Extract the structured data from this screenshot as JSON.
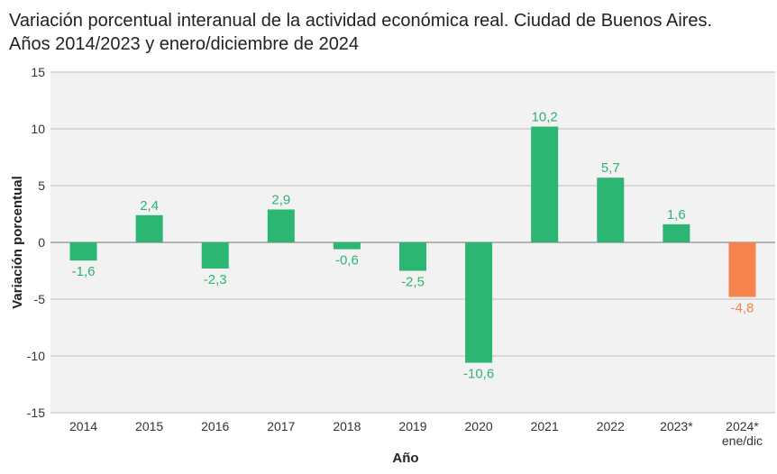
{
  "chart_data": {
    "type": "bar",
    "title_lines": [
      "Variación porcentual interanual de la actividad económica real. Ciudad de Buenos Aires.",
      "Años 2014/2023 y enero/diciembre de 2024"
    ],
    "xlabel": "Año",
    "ylabel": "Variación porcentual",
    "ylim": [
      -15,
      15
    ],
    "yticks": [
      15,
      10,
      5,
      0,
      -5,
      -10,
      -15
    ],
    "grid": true,
    "categories": [
      {
        "label": "2014",
        "sublabel": ""
      },
      {
        "label": "2015",
        "sublabel": ""
      },
      {
        "label": "2016",
        "sublabel": ""
      },
      {
        "label": "2017",
        "sublabel": ""
      },
      {
        "label": "2018",
        "sublabel": ""
      },
      {
        "label": "2019",
        "sublabel": ""
      },
      {
        "label": "2020",
        "sublabel": ""
      },
      {
        "label": "2021",
        "sublabel": ""
      },
      {
        "label": "2022",
        "sublabel": ""
      },
      {
        "label": "2023*",
        "sublabel": ""
      },
      {
        "label": "2024*",
        "sublabel": "ene/dic"
      }
    ],
    "values": [
      -1.6,
      2.4,
      -2.3,
      2.9,
      -0.6,
      -2.5,
      -10.6,
      10.2,
      5.7,
      1.6,
      -4.8
    ],
    "value_labels": [
      "-1,6",
      "2,4",
      "-2,3",
      "2,9",
      "-0,6",
      "-2,5",
      "-10,6",
      "10,2",
      "5,7",
      "1,6",
      "-4,8"
    ],
    "colors": {
      "bar": "#2bb673",
      "highlight_bar": "#f5844c",
      "plot_background": "#f2f2f2",
      "gridline": "#bdbdbd",
      "zero_line": "#9e9e9e"
    },
    "highlight_index": 10
  }
}
